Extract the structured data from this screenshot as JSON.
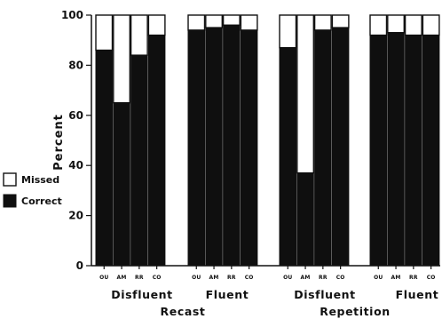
{
  "chart_data": {
    "type": "bar",
    "stacked": true,
    "ylabel": "Percent",
    "ylim": [
      0,
      100
    ],
    "yticks": [
      0,
      20,
      40,
      60,
      80,
      100
    ],
    "grid": false,
    "legend_position": "left",
    "legend": [
      {
        "label": "Missed",
        "color": "#ffffff"
      },
      {
        "label": "Correct",
        "color": "#0f0f0f"
      }
    ],
    "categories": [
      "OU",
      "AM",
      "RR",
      "CO",
      "OU",
      "AM",
      "RR",
      "CO",
      "OU",
      "AM",
      "RR",
      "CO",
      "OU",
      "AM",
      "RR",
      "CO"
    ],
    "groups": [
      {
        "label": "Disfluent",
        "supergroup": "Recast",
        "categories": [
          "OU",
          "AM",
          "RR",
          "CO"
        ]
      },
      {
        "label": "Fluent",
        "supergroup": "Recast",
        "categories": [
          "OU",
          "AM",
          "RR",
          "CO"
        ]
      },
      {
        "label": "Disfluent",
        "supergroup": "Repetition",
        "categories": [
          "OU",
          "AM",
          "RR",
          "CO"
        ]
      },
      {
        "label": "Fluent",
        "supergroup": "Repetition",
        "categories": [
          "OU",
          "AM",
          "RR",
          "CO"
        ]
      }
    ],
    "supergroups": [
      "Recast",
      "Repetition"
    ],
    "series": [
      {
        "name": "Correct",
        "values": [
          86,
          65,
          84,
          92,
          94,
          95,
          96,
          94,
          87,
          37,
          94,
          95,
          92,
          93,
          92,
          92
        ]
      },
      {
        "name": "Missed",
        "values": [
          14,
          35,
          16,
          8,
          6,
          5,
          4,
          6,
          13,
          63,
          6,
          5,
          8,
          7,
          8,
          8
        ]
      }
    ]
  }
}
